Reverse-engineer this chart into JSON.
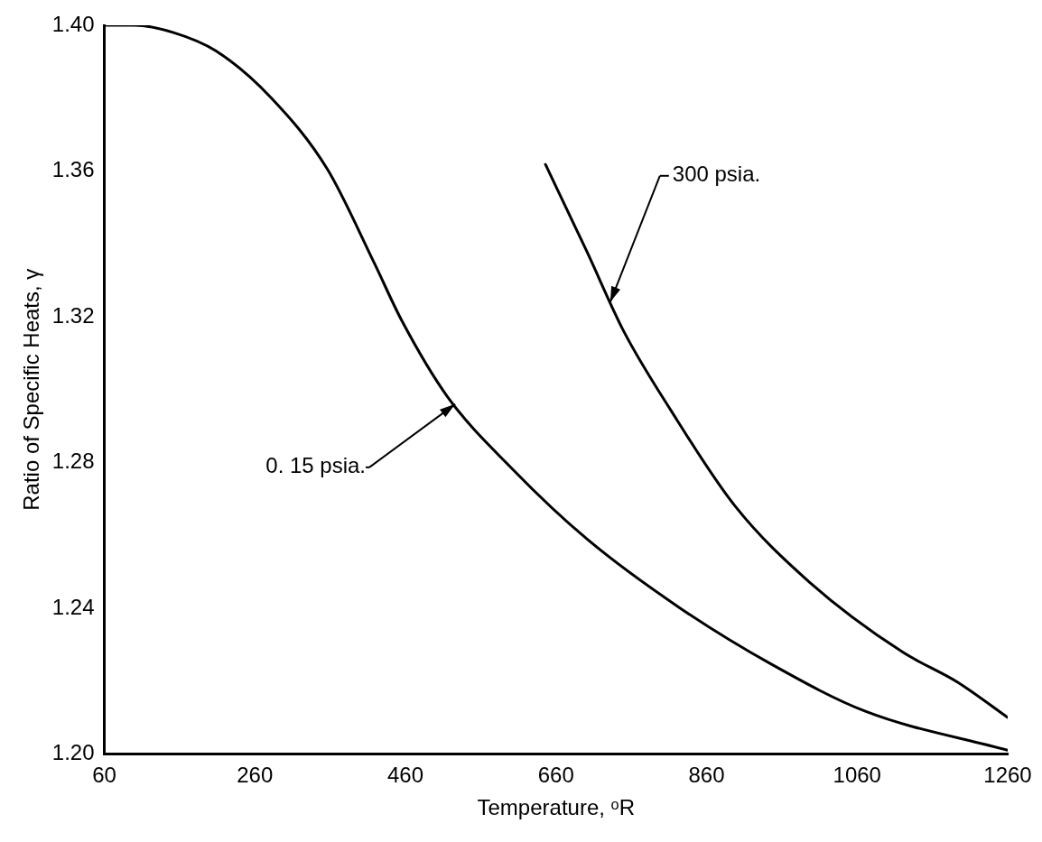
{
  "chart_data": {
    "type": "line",
    "xlabel": "Temperature, ᵒR",
    "ylabel": "Ratio of Specific Heats, γ",
    "xlim": [
      60,
      1260
    ],
    "xticks": [
      60,
      260,
      460,
      660,
      860,
      1060,
      1260
    ],
    "ylim": [
      1.2,
      1.4
    ],
    "yticks": [
      {
        "value": 1.2,
        "label": "1.20"
      },
      {
        "value": 1.24,
        "label": "1.24"
      },
      {
        "value": 1.28,
        "label": "1.28"
      },
      {
        "value": 1.32,
        "label": "1.32"
      },
      {
        "value": 1.36,
        "label": "1.36"
      },
      {
        "value": 1.4,
        "label": "1.40"
      }
    ],
    "grid": false,
    "legend": false,
    "marker": "none",
    "line_style": "solid",
    "series": [
      {
        "color": "#000000",
        "x": [
          60,
          100,
          152,
          208,
          282,
          356,
          418,
          455,
          516,
          603,
          701,
          825,
          948,
          1071,
          1260
        ],
        "values": [
          1.4,
          1.4,
          1.398,
          1.393,
          1.38,
          1.3606,
          1.335,
          1.319,
          1.298,
          1.278,
          1.259,
          1.24,
          1.2244,
          1.2117,
          1.201
        ]
      },
      {
        "color": "#000000",
        "x": [
          646,
          701,
          750,
          812,
          898,
          997,
          1120,
          1194,
          1260
        ],
        "values": [
          1.3618,
          1.3379,
          1.316,
          1.2945,
          1.268,
          1.2471,
          1.228,
          1.2196,
          1.21
        ]
      }
    ],
    "annotations": [
      {
        "text": "0. 15 psia.",
        "x": 526,
        "y": 1.296
      },
      {
        "text": "300 psia.",
        "x": 732,
        "y": 1.324
      }
    ]
  }
}
